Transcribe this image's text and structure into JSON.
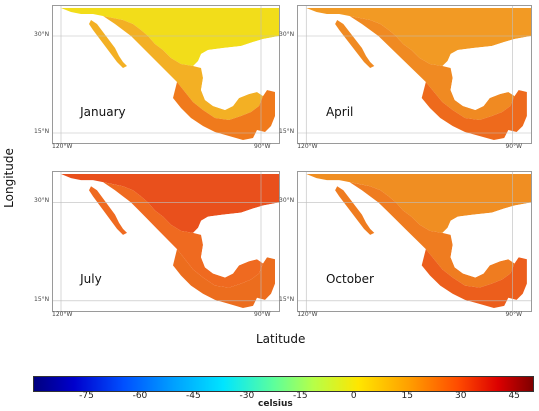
{
  "panels": [
    {
      "label": "January",
      "lat_ticks": [
        "30°N",
        "15°N"
      ],
      "lon_ticks": [
        "120°W",
        "90°W"
      ],
      "colors": {
        "north": "#f2dd1a",
        "central": "#f3b024",
        "south": "#f07a1c"
      }
    },
    {
      "label": "April",
      "lat_ticks": [
        "30°N",
        "15°N"
      ],
      "lon_ticks": [
        "120°W",
        "90°W"
      ],
      "colors": {
        "north": "#f29a24",
        "central": "#f08a22",
        "south": "#ee6a1c"
      }
    },
    {
      "label": "July",
      "lat_ticks": [
        "30°N",
        "15°N"
      ],
      "lon_ticks": [
        "120°W",
        "90°W"
      ],
      "colors": {
        "north": "#e9501c",
        "central": "#ef6a20",
        "south": "#ec6d1e"
      }
    },
    {
      "label": "October",
      "lat_ticks": [
        "30°N",
        "15°N"
      ],
      "lon_ticks": [
        "120°W",
        "90°W"
      ],
      "colors": {
        "north": "#f08e22",
        "central": "#ef7c20",
        "south": "#ec5e1c"
      }
    }
  ],
  "axes": {
    "y_title": "Longitude",
    "x_title": "Latitude"
  },
  "colorbar": {
    "ticks": [
      "-75",
      "-60",
      "-45",
      "-30",
      "-15",
      "0",
      "15",
      "30",
      "45"
    ],
    "unit": "celsius",
    "range": [
      -90,
      50
    ]
  }
}
